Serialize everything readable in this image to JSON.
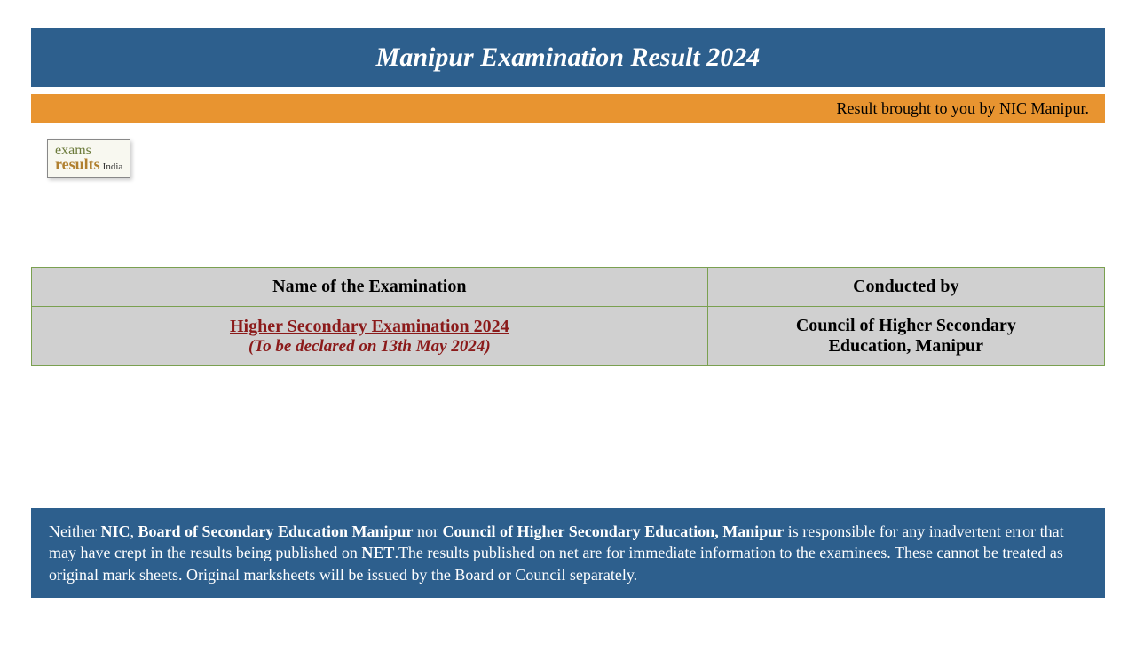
{
  "header": {
    "title": "Manipur Examination Result 2024"
  },
  "credit": {
    "text": "Result brought to you by NIC Manipur."
  },
  "logo": {
    "line1": "exams",
    "line2": "results",
    "suffix": "India"
  },
  "table": {
    "headers": {
      "exam_name": "Name of the Examination",
      "conducted_by": "Conducted by"
    },
    "row": {
      "exam_link": "Higher Secondary Examination 2024",
      "exam_subtitle": "(To be declared on 13th May 2024)",
      "conducted_line1": "Council of Higher Secondary",
      "conducted_line2": "Education, Manipur"
    }
  },
  "disclaimer": {
    "pre1": "Neither ",
    "b1": "NIC",
    "mid1": ", ",
    "b2": "Board of Secondary Education Manipur",
    "mid2": " nor ",
    "b3": "Council of Higher Secondary Education, Manipur",
    "mid3": " is responsible for any inadvertent error that may have crept in the results being published on ",
    "b4": "NET",
    "post": ".The results published on net are for immediate information to the examinees. These cannot be treated as original mark sheets. Original marksheets will be issued by the Board or Council separately."
  },
  "colors": {
    "banner_bg": "#2d5f8d",
    "credit_bg": "#e89430",
    "table_border": "#7aa050",
    "table_bg": "#d0d0d0",
    "link_color": "#8b1a1a"
  }
}
